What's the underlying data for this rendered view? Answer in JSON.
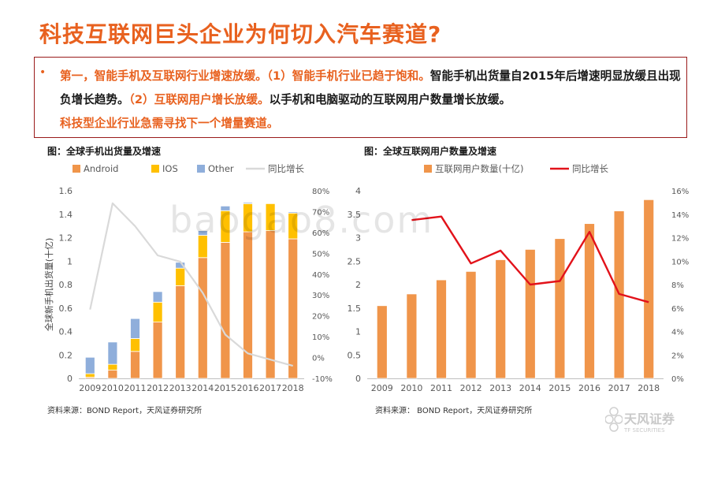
{
  "page": {
    "title": "科技互联网巨头企业为何切入汽车赛道?",
    "bullet": "•",
    "summary": {
      "part1": "第一，智能手机及互联网行业增速放缓。（1）智能手机行业已趋于饱和。",
      "part2": "智能手机出货量自2015年后增速明显放缓且出现负增长趋势。",
      "part3": "（2）互联网用户增长放缓。",
      "part4": "以手机和电脑驱动的互联网用户数量增长放缓。",
      "part5": "科技型企业行业急需寻找下一个增量赛道。"
    },
    "watermark": "baogao8.com",
    "logo": {
      "main": "天风证券",
      "sub": "TF SECURITIES"
    },
    "colors": {
      "accent": "#e8611f",
      "border": "#9a1b1b"
    }
  },
  "chart_data": [
    {
      "type": "bar",
      "stacked": true,
      "title": "图：全球手机出货量及增速",
      "ylabel": "全球新手机出货量(十亿)",
      "categories": [
        "2009",
        "2010",
        "2011",
        "2012",
        "2013",
        "2014",
        "2015",
        "2016",
        "2017",
        "2018"
      ],
      "ylim": [
        0,
        1.6
      ],
      "yticks": [
        "0",
        "0.2",
        "0.4",
        "0.6",
        "0.8",
        "1",
        "1.2",
        "1.4",
        "1.6"
      ],
      "y2lim": [
        -10,
        80
      ],
      "y2ticks": [
        "-10%",
        "0%",
        "10%",
        "20%",
        "30%",
        "40%",
        "50%",
        "60%",
        "70%",
        "80%"
      ],
      "series": [
        {
          "name": "Android",
          "color": "#f0954a",
          "values": [
            0.01,
            0.07,
            0.23,
            0.48,
            0.79,
            1.03,
            1.16,
            1.25,
            1.26,
            1.19
          ]
        },
        {
          "name": "IOS",
          "color": "#ffc000",
          "values": [
            0.03,
            0.05,
            0.11,
            0.17,
            0.15,
            0.19,
            0.27,
            0.24,
            0.23,
            0.22
          ]
        },
        {
          "name": "Other",
          "color": "#8faedb",
          "values": [
            0.14,
            0.19,
            0.17,
            0.09,
            0.05,
            0.04,
            0.04,
            0.01,
            0.0,
            0.01
          ]
        }
      ],
      "line": {
        "name": "同比增长",
        "color": "#d9d9d9",
        "values": [
          23,
          74,
          63,
          49,
          46,
          31,
          11,
          2,
          -1,
          -4
        ]
      },
      "legend": "top",
      "grid": false,
      "source": "资料来源：BOND Report，天风证券研究所"
    },
    {
      "type": "bar",
      "title": "图：全球互联网用户数量及增速",
      "categories": [
        "2009",
        "2010",
        "2011",
        "2012",
        "2013",
        "2014",
        "2015",
        "2016",
        "2017",
        "2018"
      ],
      "ylim": [
        0,
        4
      ],
      "yticks": [
        "0",
        "0.5",
        "1",
        "1.5",
        "2",
        "2.5",
        "3",
        "3.5",
        "4"
      ],
      "y2lim": [
        0,
        16
      ],
      "y2ticks": [
        "0%",
        "2%",
        "4%",
        "6%",
        "8%",
        "10%",
        "12%",
        "14%",
        "16%"
      ],
      "series": [
        {
          "name": "互联网用户数量(十亿)",
          "color": "#f0954a",
          "values": [
            1.55,
            1.8,
            2.1,
            2.28,
            2.53,
            2.75,
            2.98,
            3.3,
            3.57,
            3.81
          ]
        }
      ],
      "line": {
        "name": "同比增长",
        "color": "#e2121a",
        "values": [
          null,
          13.5,
          13.8,
          9.8,
          10.9,
          8.0,
          8.3,
          12.5,
          7.2,
          6.5
        ]
      },
      "legend": "top",
      "grid": false,
      "source": "资料来源： BOND Report，天风证券研究所"
    }
  ]
}
